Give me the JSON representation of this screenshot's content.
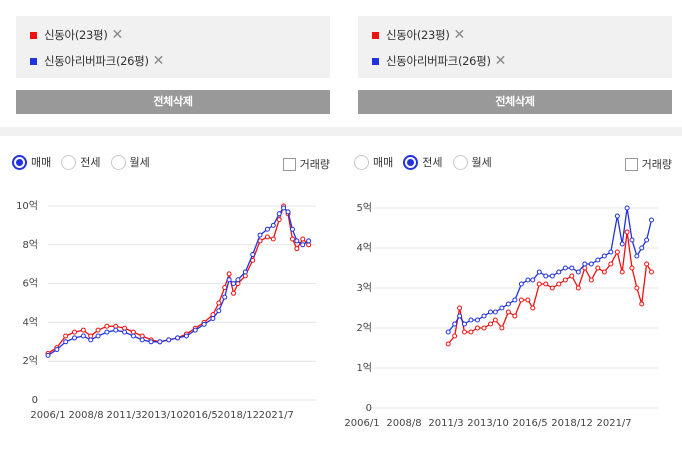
{
  "left": {
    "compare": [
      {
        "label": "신동아(23평)",
        "color": "#ee1111"
      },
      {
        "label": "신동아리버파크(26평)",
        "color": "#2233dd"
      }
    ],
    "clear_label": "전체삭제",
    "radios": [
      {
        "label": "매매",
        "selected": true
      },
      {
        "label": "전세",
        "selected": false
      },
      {
        "label": "월세",
        "selected": false
      }
    ],
    "volume_label": "거래량"
  },
  "right": {
    "compare": [
      {
        "label": "신동아(23평)",
        "color": "#ee1111"
      },
      {
        "label": "신동아리버파크(26평)",
        "color": "#2233dd"
      }
    ],
    "clear_label": "전체삭제",
    "radios": [
      {
        "label": "매매",
        "selected": false
      },
      {
        "label": "전세",
        "selected": true
      },
      {
        "label": "월세",
        "selected": false
      }
    ],
    "volume_label": "거래량"
  },
  "close_glyph": "✕",
  "chart_data": [
    {
      "type": "line",
      "ylim": [
        0,
        10
      ],
      "yticks": [
        {
          "v": 0,
          "label": "0"
        },
        {
          "v": 2,
          "label": "2억"
        },
        {
          "v": 4,
          "label": "4억"
        },
        {
          "v": 6,
          "label": "6억"
        },
        {
          "v": 8,
          "label": "8억"
        },
        {
          "v": 10,
          "label": "10억"
        }
      ],
      "xticks": [
        "2006/1",
        "2008/8",
        "2011/3",
        "2013/10",
        "2016/5",
        "2018/12",
        "2021/7"
      ],
      "xrange": [
        2006.0,
        2024.2
      ],
      "series": [
        {
          "color": "#ee1111",
          "points": [
            [
              2006.0,
              2.4
            ],
            [
              2006.6,
              2.7
            ],
            [
              2007.2,
              3.3
            ],
            [
              2007.8,
              3.5
            ],
            [
              2008.4,
              3.6
            ],
            [
              2008.9,
              3.3
            ],
            [
              2009.4,
              3.6
            ],
            [
              2010.0,
              3.8
            ],
            [
              2010.6,
              3.8
            ],
            [
              2011.2,
              3.7
            ],
            [
              2011.8,
              3.5
            ],
            [
              2012.4,
              3.3
            ],
            [
              2013.0,
              3.1
            ],
            [
              2013.6,
              3.0
            ],
            [
              2014.2,
              3.1
            ],
            [
              2014.8,
              3.2
            ],
            [
              2015.4,
              3.4
            ],
            [
              2016.0,
              3.7
            ],
            [
              2016.6,
              4.0
            ],
            [
              2017.2,
              4.4
            ],
            [
              2017.6,
              5.0
            ],
            [
              2018.0,
              5.8
            ],
            [
              2018.3,
              6.5
            ],
            [
              2018.6,
              5.5
            ],
            [
              2018.9,
              6.0
            ],
            [
              2019.4,
              6.4
            ],
            [
              2019.9,
              7.2
            ],
            [
              2020.4,
              8.2
            ],
            [
              2020.9,
              8.4
            ],
            [
              2021.3,
              8.3
            ],
            [
              2021.7,
              9.3
            ],
            [
              2022.0,
              10.0
            ],
            [
              2022.3,
              9.6
            ],
            [
              2022.6,
              8.3
            ],
            [
              2022.9,
              7.8
            ],
            [
              2023.3,
              8.3
            ],
            [
              2023.7,
              8.0
            ]
          ]
        },
        {
          "color": "#2233dd",
          "points": [
            [
              2006.0,
              2.3
            ],
            [
              2006.6,
              2.6
            ],
            [
              2007.2,
              3.0
            ],
            [
              2007.8,
              3.2
            ],
            [
              2008.4,
              3.3
            ],
            [
              2008.9,
              3.1
            ],
            [
              2009.4,
              3.3
            ],
            [
              2010.0,
              3.5
            ],
            [
              2010.6,
              3.6
            ],
            [
              2011.2,
              3.5
            ],
            [
              2011.8,
              3.3
            ],
            [
              2012.4,
              3.1
            ],
            [
              2013.0,
              3.0
            ],
            [
              2013.6,
              3.0
            ],
            [
              2014.2,
              3.1
            ],
            [
              2014.8,
              3.2
            ],
            [
              2015.4,
              3.3
            ],
            [
              2016.0,
              3.6
            ],
            [
              2016.6,
              3.9
            ],
            [
              2017.2,
              4.2
            ],
            [
              2017.6,
              4.6
            ],
            [
              2018.0,
              5.3
            ],
            [
              2018.3,
              6.2
            ],
            [
              2018.6,
              6.0
            ],
            [
              2018.9,
              6.2
            ],
            [
              2019.4,
              6.6
            ],
            [
              2019.9,
              7.5
            ],
            [
              2020.4,
              8.5
            ],
            [
              2020.9,
              8.8
            ],
            [
              2021.3,
              9.0
            ],
            [
              2021.7,
              9.6
            ],
            [
              2022.0,
              9.9
            ],
            [
              2022.3,
              9.7
            ],
            [
              2022.6,
              8.8
            ],
            [
              2022.9,
              8.2
            ],
            [
              2023.3,
              8.0
            ],
            [
              2023.7,
              8.2
            ]
          ]
        }
      ]
    },
    {
      "type": "line",
      "ylim": [
        0,
        5
      ],
      "yticks": [
        {
          "v": 0,
          "label": "0"
        },
        {
          "v": 1,
          "label": "1억"
        },
        {
          "v": 2,
          "label": "2억"
        },
        {
          "v": 3,
          "label": "3억"
        },
        {
          "v": 4,
          "label": "4억"
        },
        {
          "v": 5,
          "label": "5억"
        }
      ],
      "xticks": [
        "2006/1",
        "2008/8",
        "2011/3",
        "2013/10",
        "2016/5",
        "2018/12",
        "2021/7"
      ],
      "xrange": [
        2006.0,
        2024.2
      ],
      "series": [
        {
          "color": "#ee1111",
          "points": [
            [
              2011.3,
              1.6
            ],
            [
              2011.7,
              1.8
            ],
            [
              2012.0,
              2.5
            ],
            [
              2012.3,
              1.9
            ],
            [
              2012.7,
              1.9
            ],
            [
              2013.1,
              2.0
            ],
            [
              2013.5,
              2.0
            ],
            [
              2013.9,
              2.1
            ],
            [
              2014.2,
              2.2
            ],
            [
              2014.6,
              2.0
            ],
            [
              2015.0,
              2.4
            ],
            [
              2015.4,
              2.3
            ],
            [
              2015.8,
              2.7
            ],
            [
              2016.2,
              2.7
            ],
            [
              2016.5,
              2.5
            ],
            [
              2016.9,
              3.1
            ],
            [
              2017.3,
              3.1
            ],
            [
              2017.7,
              3.0
            ],
            [
              2018.1,
              3.1
            ],
            [
              2018.5,
              3.2
            ],
            [
              2018.9,
              3.3
            ],
            [
              2019.3,
              3.0
            ],
            [
              2019.7,
              3.5
            ],
            [
              2020.1,
              3.2
            ],
            [
              2020.5,
              3.5
            ],
            [
              2020.9,
              3.4
            ],
            [
              2021.3,
              3.6
            ],
            [
              2021.7,
              3.9
            ],
            [
              2022.0,
              3.4
            ],
            [
              2022.3,
              4.4
            ],
            [
              2022.6,
              3.5
            ],
            [
              2022.9,
              3.0
            ],
            [
              2023.2,
              2.6
            ],
            [
              2023.5,
              3.6
            ],
            [
              2023.8,
              3.4
            ]
          ]
        },
        {
          "color": "#2233dd",
          "points": [
            [
              2011.3,
              1.9
            ],
            [
              2011.7,
              2.1
            ],
            [
              2012.0,
              2.3
            ],
            [
              2012.3,
              2.1
            ],
            [
              2012.7,
              2.2
            ],
            [
              2013.1,
              2.2
            ],
            [
              2013.5,
              2.3
            ],
            [
              2013.9,
              2.4
            ],
            [
              2014.2,
              2.4
            ],
            [
              2014.6,
              2.5
            ],
            [
              2015.0,
              2.6
            ],
            [
              2015.4,
              2.7
            ],
            [
              2015.8,
              3.1
            ],
            [
              2016.2,
              3.2
            ],
            [
              2016.5,
              3.2
            ],
            [
              2016.9,
              3.4
            ],
            [
              2017.3,
              3.3
            ],
            [
              2017.7,
              3.3
            ],
            [
              2018.1,
              3.4
            ],
            [
              2018.5,
              3.5
            ],
            [
              2018.9,
              3.5
            ],
            [
              2019.3,
              3.4
            ],
            [
              2019.7,
              3.6
            ],
            [
              2020.1,
              3.6
            ],
            [
              2020.5,
              3.7
            ],
            [
              2020.9,
              3.8
            ],
            [
              2021.3,
              3.9
            ],
            [
              2021.7,
              4.8
            ],
            [
              2022.0,
              4.1
            ],
            [
              2022.3,
              5.0
            ],
            [
              2022.6,
              4.2
            ],
            [
              2022.9,
              3.8
            ],
            [
              2023.2,
              4.0
            ],
            [
              2023.5,
              4.2
            ],
            [
              2023.8,
              4.7
            ]
          ]
        }
      ]
    }
  ]
}
